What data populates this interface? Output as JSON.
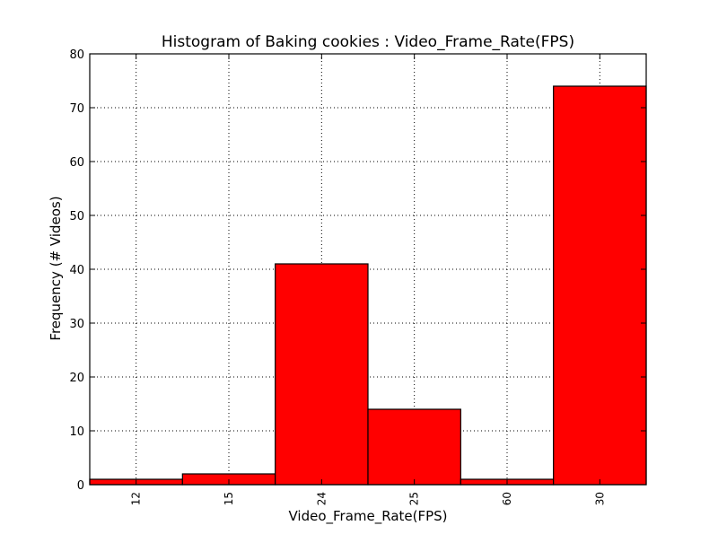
{
  "chart_data": {
    "type": "bar",
    "title": "Histogram of Baking cookies : Video_Frame_Rate(FPS)",
    "xlabel": "Video_Frame_Rate(FPS)",
    "ylabel": "Frequency (# Videos)",
    "categories": [
      "12",
      "15",
      "24",
      "25",
      "60",
      "30"
    ],
    "values": [
      1,
      2,
      41,
      14,
      1,
      74
    ],
    "ylim": [
      0,
      80
    ],
    "yticks": [
      "0",
      "10",
      "20",
      "30",
      "40",
      "50",
      "60",
      "70",
      "80"
    ],
    "grid": true,
    "bar_color": "#ff0000",
    "edge_color": "#000000"
  }
}
